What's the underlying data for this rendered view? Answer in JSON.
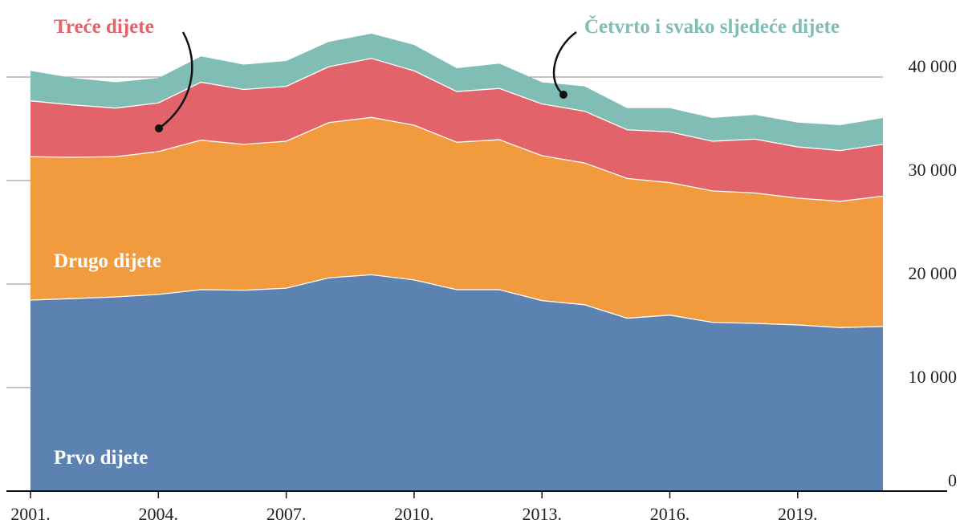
{
  "chart_data": {
    "type": "stacked_area",
    "x": [
      2001,
      2002,
      2003,
      2004,
      2005,
      2006,
      2007,
      2008,
      2009,
      2010,
      2011,
      2012,
      2013,
      2014,
      2015,
      2016,
      2017,
      2018,
      2019,
      2020,
      2021
    ],
    "series": [
      {
        "name": "Prvo dijete",
        "color": "#5b82b0",
        "values": [
          18450,
          18600,
          18760,
          19000,
          19460,
          19400,
          19600,
          20600,
          20900,
          20400,
          19460,
          19460,
          18400,
          18000,
          16700,
          17000,
          16300,
          16200,
          16050,
          15800,
          15900
        ]
      },
      {
        "name": "Drugo dijete",
        "color": "#f29a3e",
        "values": [
          13850,
          13650,
          13540,
          13800,
          14440,
          14100,
          14200,
          15000,
          15200,
          14950,
          14240,
          14490,
          14000,
          13700,
          13500,
          12800,
          12700,
          12600,
          12250,
          12200,
          12600
        ]
      },
      {
        "name": "Treće dijete",
        "color": "#e2636a",
        "values": [
          5400,
          5050,
          4700,
          4700,
          5600,
          5300,
          5300,
          5400,
          5700,
          5250,
          4900,
          4950,
          5000,
          5000,
          4700,
          4900,
          4800,
          5200,
          4950,
          4900,
          5000
        ]
      },
      {
        "name": "Četvrto i svako sljedeće dijete",
        "color": "#7fbdb5",
        "values": [
          2900,
          2600,
          2500,
          2400,
          2500,
          2400,
          2450,
          2400,
          2400,
          2500,
          2250,
          2400,
          2100,
          2400,
          2100,
          2300,
          2250,
          2350,
          2350,
          2450,
          2550
        ]
      }
    ],
    "xlim": [
      2001,
      2021
    ],
    "xticks": [
      {
        "value": 2001,
        "label": "2001."
      },
      {
        "value": 2004,
        "label": "2004."
      },
      {
        "value": 2007,
        "label": "2007."
      },
      {
        "value": 2010,
        "label": "2010."
      },
      {
        "value": 2013,
        "label": "2013."
      },
      {
        "value": 2016,
        "label": "2016."
      },
      {
        "value": 2019,
        "label": "2019."
      }
    ],
    "ylim": [
      0,
      45000
    ],
    "yticks": [
      0,
      {
        "value": 10000,
        "label": "10 000"
      },
      {
        "value": 20000,
        "label": "20 000"
      },
      {
        "value": 30000,
        "label": "30 000"
      },
      {
        "value": 40000,
        "label": "40 000"
      }
    ],
    "grid": true
  }
}
